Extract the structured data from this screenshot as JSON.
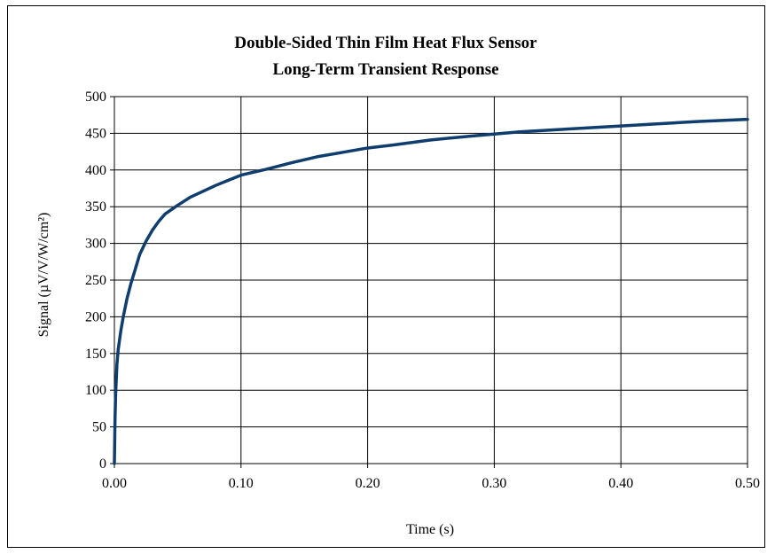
{
  "chart_data": {
    "type": "line",
    "title": [
      "Double-Sided Thin Film Heat Flux Sensor",
      "Long-Term Transient Response"
    ],
    "xlabel": "Time (s)",
    "ylabel": "Signal (µV/V/W/cm²)",
    "xlim": [
      0,
      0.5
    ],
    "ylim": [
      0,
      500
    ],
    "xticks": [
      "0.00",
      "0.10",
      "0.20",
      "0.30",
      "0.40",
      "0.50"
    ],
    "yticks": [
      "0",
      "50",
      "100",
      "150",
      "200",
      "250",
      "300",
      "350",
      "400",
      "450",
      "500"
    ],
    "grid": true,
    "series": [
      {
        "color": "#0f3d6e",
        "x": [
          0,
          0.0005,
          0.001,
          0.002,
          0.003,
          0.005,
          0.007,
          0.01,
          0.013,
          0.016,
          0.02,
          0.025,
          0.03,
          0.035,
          0.04,
          0.05,
          0.06,
          0.07,
          0.08,
          0.09,
          0.1,
          0.12,
          0.14,
          0.16,
          0.18,
          0.2,
          0.22,
          0.25,
          0.28,
          0.3,
          0.32,
          0.35,
          0.38,
          0.4,
          0.43,
          0.46,
          0.5
        ],
        "y": [
          0,
          60,
          95,
          135,
          155,
          180,
          200,
          225,
          245,
          262,
          285,
          303,
          318,
          330,
          340,
          352,
          363,
          371,
          379,
          386,
          393,
          401,
          410,
          418,
          424,
          430,
          434,
          441,
          446,
          449,
          452,
          455,
          458,
          460,
          463,
          466,
          469
        ]
      }
    ]
  }
}
